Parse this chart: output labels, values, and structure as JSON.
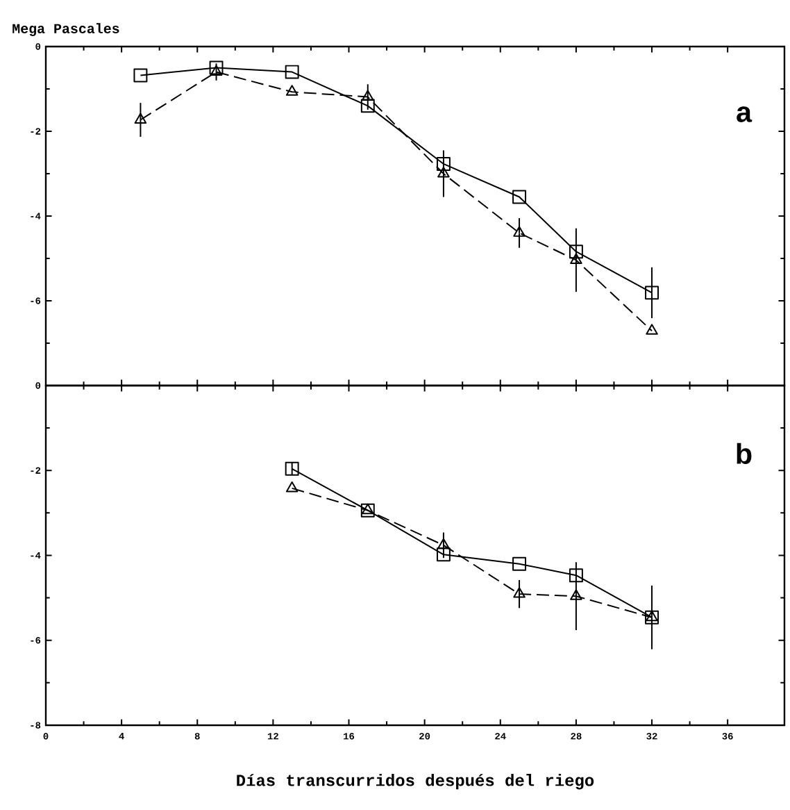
{
  "chart_data": [
    {
      "type": "line",
      "ylabel": "Mega Pascales",
      "annotations": [
        "a"
      ],
      "xlim": [
        0,
        39
      ],
      "xticks": [
        0,
        4,
        8,
        12,
        16,
        20,
        24,
        28,
        32,
        36
      ],
      "ylim": [
        -8,
        0
      ],
      "yticks": [
        {
          "value": -8,
          "label": null
        },
        -6,
        -4,
        -2,
        0
      ],
      "tick_labels": "y",
      "grid": false,
      "series": [
        {
          "color": "#000000",
          "marker": "square",
          "line_style": "solid",
          "x": [
            5,
            9,
            13,
            17,
            21,
            25,
            28,
            32
          ],
          "values": [
            -0.68,
            -0.5,
            -0.6,
            -1.4,
            -2.77,
            -3.55,
            -4.84,
            -5.81
          ],
          "errors": [
            null,
            null,
            null,
            null,
            null,
            null,
            null,
            0.6
          ]
        },
        {
          "color": "#000000",
          "marker": "triangle",
          "line_style": "dashed",
          "x": [
            5,
            9,
            13,
            17,
            21,
            25,
            28,
            32
          ],
          "values": [
            -1.73,
            -0.6,
            -1.07,
            -1.19,
            -3.0,
            -4.4,
            -5.04,
            -6.71
          ],
          "errors": [
            0.4,
            0.2,
            null,
            0.3,
            0.55,
            0.35,
            0.75,
            null
          ]
        }
      ]
    },
    {
      "type": "line",
      "xlabel": "Días transcurridos después del riego",
      "annotations": [
        "b"
      ],
      "xlim": [
        0,
        39
      ],
      "xticks": [
        0,
        4,
        8,
        12,
        16,
        20,
        24,
        28,
        32,
        36
      ],
      "ylim": [
        -8,
        0
      ],
      "yticks": [
        -8,
        -6,
        -4,
        -2,
        0
      ],
      "grid": false,
      "series": [
        {
          "color": "#000000",
          "marker": "square",
          "line_style": "solid",
          "x": [
            13,
            17,
            21,
            25,
            28,
            32
          ],
          "values": [
            -1.96,
            -2.94,
            -3.98,
            -4.2,
            -4.47,
            -5.46
          ],
          "errors": [
            0.15,
            null,
            null,
            null,
            null,
            0.75
          ]
        },
        {
          "color": "#000000",
          "marker": "triangle",
          "line_style": "dashed",
          "x": [
            13,
            17,
            21,
            25,
            28,
            32
          ],
          "values": [
            -2.42,
            -2.94,
            -3.76,
            -4.91,
            -4.96,
            -5.46
          ],
          "errors": [
            null,
            null,
            0.3,
            0.33,
            0.8,
            null
          ]
        }
      ]
    }
  ]
}
